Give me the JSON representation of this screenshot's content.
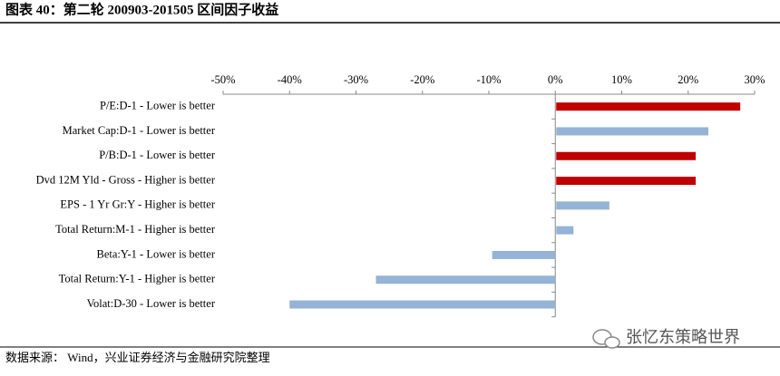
{
  "chart_data": {
    "type": "hbar",
    "title": "图表 40：第二轮 200903-201505 区间因子收益",
    "categories": [
      "P/E:D-1 - Lower is better",
      "Market Cap:D-1 - Lower is better",
      "P/B:D-1 - Lower is better",
      "Dvd 12M Yld - Gross - Higher is better",
      "EPS - 1 Yr Gr:Y - Higher is better",
      "Total Return:M-1 - Higher is better",
      "Beta:Y-1 - Lower is better",
      "Total Return:Y-1 - Higher is better",
      "Volat:D-30 - Lower is better"
    ],
    "values": [
      27.7,
      22.9,
      21.0,
      21.0,
      8.0,
      2.6,
      -9.5,
      -27.0,
      -40.0
    ],
    "colors": [
      "#c00000",
      "#95b3d7",
      "#c00000",
      "#c00000",
      "#95b3d7",
      "#95b3d7",
      "#95b3d7",
      "#95b3d7",
      "#95b3d7"
    ],
    "xlim": [
      -50,
      30
    ],
    "xticks": [
      {
        "value": -50,
        "label": "-50%"
      },
      {
        "value": -40,
        "label": "-40%"
      },
      {
        "value": -30,
        "label": "-30%"
      },
      {
        "value": -20,
        "label": "-20%"
      },
      {
        "value": -10,
        "label": "-10%"
      },
      {
        "value": 0,
        "label": "0%"
      },
      {
        "value": 10,
        "label": "10%"
      },
      {
        "value": 20,
        "label": "20%"
      },
      {
        "value": 30,
        "label": "30%"
      }
    ],
    "source": "数据来源： Wind，兴业证券经济与金融研究院整理",
    "watermark": "张忆东策略世界"
  }
}
